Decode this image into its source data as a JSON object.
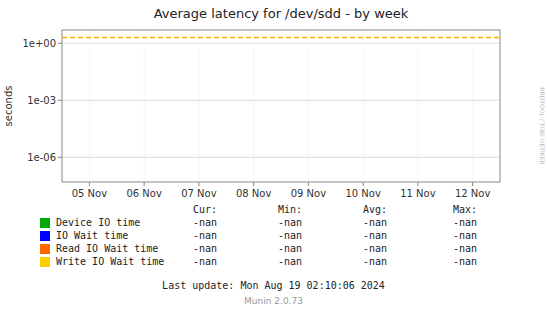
{
  "chart_data": {
    "type": "line",
    "title": "Average latency for /dev/sdd - by week",
    "y_label": "seconds",
    "log": "y",
    "grid": true,
    "legend": "bottom",
    "categories": [
      "05 Nov",
      "06 Nov",
      "07 Nov",
      "08 Nov",
      "09 Nov",
      "10 Nov",
      "11 Nov",
      "12 Nov"
    ],
    "ylim": [
      5e-08,
      5
    ],
    "yticks": [
      {
        "value": 1e-06,
        "label": "1e-06"
      },
      {
        "value": 0.001,
        "label": "1e-03"
      },
      {
        "value": 1,
        "label": "1e+00"
      }
    ],
    "reference_line": {
      "value": 2.0,
      "color": "#ffaa00",
      "line_style": "dashed"
    },
    "legend_columns": [
      "Cur:",
      "Min:",
      "Avg:",
      "Max:"
    ],
    "series": [
      {
        "name": "Device IO time",
        "color": "#00aa00",
        "values": [
          null,
          null,
          null,
          null,
          null,
          null,
          null,
          null
        ],
        "legend_values": [
          "-nan",
          "-nan",
          "-nan",
          "-nan"
        ]
      },
      {
        "name": "IO Wait time",
        "color": "#0000ff",
        "values": [
          null,
          null,
          null,
          null,
          null,
          null,
          null,
          null
        ],
        "legend_values": [
          "-nan",
          "-nan",
          "-nan",
          "-nan"
        ]
      },
      {
        "name": "Read IO Wait time",
        "color": "#ff6600",
        "values": [
          null,
          null,
          null,
          null,
          null,
          null,
          null,
          null
        ],
        "legend_values": [
          "-nan",
          "-nan",
          "-nan",
          "-nan"
        ]
      },
      {
        "name": "Write IO Wait time",
        "color": "#ffcc00",
        "values": [
          null,
          null,
          null,
          null,
          null,
          null,
          null,
          null
        ],
        "legend_values": [
          "-nan",
          "-nan",
          "-nan",
          "-nan"
        ]
      }
    ],
    "footer": "Last update: Mon Aug 19 02:10:06 2024",
    "credit": "Munin 2.0.73",
    "watermark": "RRDTOOL / TOBI OETIKER"
  }
}
